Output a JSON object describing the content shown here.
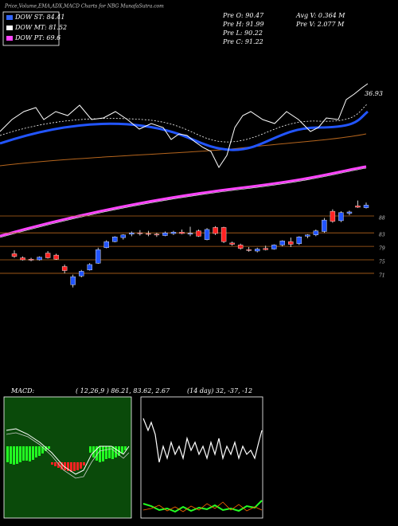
{
  "chart_data": {
    "type": "candlestick",
    "title": "Price,Volume,EMA,ADX,MACD Charts for NBG MunafaSutra.com",
    "legend": [
      "DOW ST: 84.41",
      "DOW MT: 81.52",
      "DOW PT: 69.6"
    ],
    "legend_colors": [
      "#3366ff",
      "#ffffff",
      "#ff44ff"
    ],
    "info": [
      "Pre  O: 90.47",
      "Pre  H: 91.99",
      "Pre  L: 90.22",
      "Pre  C: 91.22",
      "Avg  V: 0.364  M",
      "Pre  V: 2.077 M"
    ],
    "annotation": "36.93",
    "macd_label": "MACD:",
    "macd_text": "( 12,26,9 ) 86.21, 83.62, 2.67",
    "adx_text": "(14  day) 32,  -37,  -12",
    "up_color": "#2255ff",
    "down_color": "#ff2222",
    "ylim": [
      64.6,
      97.7
    ],
    "yticks": [
      88,
      83,
      79,
      75,
      71
    ],
    "grid": true,
    "grid_color": "#b5651d",
    "open": [
      76.8,
      75.6,
      75.2,
      75.0,
      77.0,
      76.4,
      73.0,
      67.6,
      70.2,
      72.0,
      74.0,
      78.6,
      80.4,
      81.6,
      82.6,
      83.0,
      82.8,
      82.6,
      82.2,
      82.8,
      83.2,
      82.6,
      83.6,
      81.0,
      84.6,
      84.6,
      80.0,
      79.4,
      78.0,
      77.6,
      78.4,
      78.2,
      79.4,
      80.4,
      79.8,
      82.0,
      82.4,
      83.4,
      89.4,
      86.6,
      88.8,
      91.0,
      90.47
    ],
    "high": [
      77.8,
      76.0,
      75.6,
      76.0,
      77.6,
      76.8,
      73.6,
      70.6,
      72.0,
      74.0,
      78.6,
      80.8,
      82.0,
      82.6,
      83.4,
      83.8,
      83.6,
      83.0,
      83.4,
      83.6,
      84.0,
      84.8,
      84.0,
      84.4,
      85.0,
      84.8,
      80.4,
      79.8,
      78.8,
      78.6,
      79.2,
      79.6,
      80.8,
      81.6,
      82.0,
      82.6,
      84.0,
      87.4,
      90.0,
      89.4,
      89.6,
      92.6,
      91.99
    ],
    "low": [
      75.6,
      74.8,
      74.6,
      74.8,
      75.4,
      75.0,
      71.0,
      66.8,
      69.8,
      71.8,
      73.8,
      78.4,
      80.2,
      81.0,
      82.0,
      82.2,
      82.0,
      81.8,
      82.0,
      82.4,
      82.6,
      82.0,
      81.8,
      80.8,
      82.4,
      80.0,
      79.2,
      78.0,
      77.4,
      77.2,
      77.8,
      78.0,
      79.0,
      78.8,
      79.4,
      81.4,
      82.0,
      83.0,
      86.0,
      86.2,
      88.2,
      90.4,
      90.22
    ],
    "close": [
      76.0,
      75.0,
      74.9,
      75.8,
      75.6,
      75.2,
      71.8,
      70.0,
      71.6,
      73.6,
      78.0,
      80.4,
      81.8,
      82.4,
      83.0,
      82.8,
      82.6,
      82.4,
      83.0,
      83.2,
      82.8,
      82.9,
      82.0,
      84.0,
      82.8,
      80.4,
      79.6,
      78.4,
      77.8,
      78.2,
      78.0,
      79.4,
      80.6,
      79.6,
      81.8,
      82.4,
      83.6,
      86.8,
      86.4,
      89.0,
      89.2,
      90.6,
      91.22
    ]
  }
}
